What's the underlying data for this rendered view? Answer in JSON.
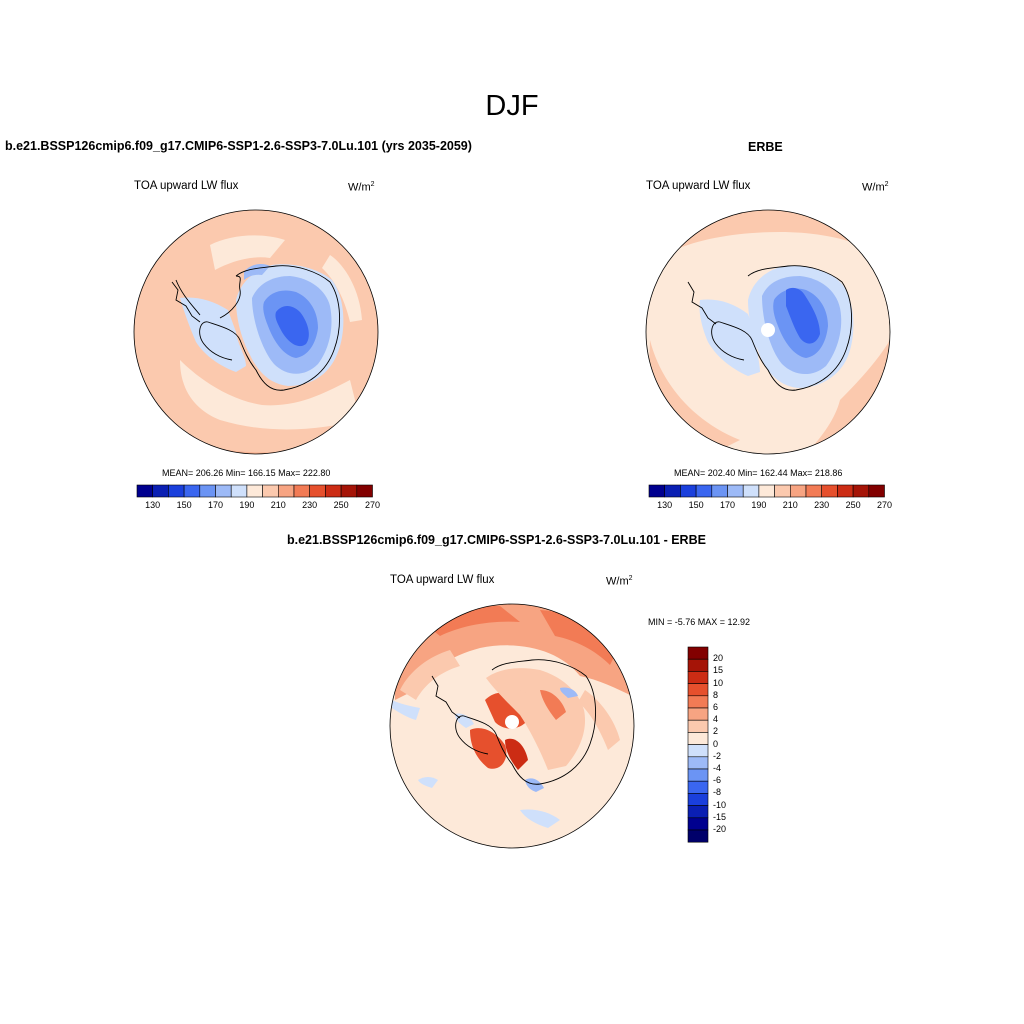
{
  "page": {
    "title": "DJF"
  },
  "panels": {
    "model": {
      "case_title": "b.e21.BSSP126cmip6.f09_g17.CMIP6-SSP1-2.6-SSP3-7.0Lu.101 (yrs 2035-2059)",
      "variable": "TOA upward LW flux",
      "units_base": "W/m",
      "units_exp": "2",
      "stats": "MEAN= 206.26  Min= 166.15  Max= 222.80"
    },
    "obs": {
      "case_title": "ERBE",
      "variable": "TOA upward LW flux",
      "units_base": "W/m",
      "units_exp": "2",
      "stats": "MEAN= 202.40  Min= 162.44  Max= 218.86"
    },
    "diff": {
      "case_title": "b.e21.BSSP126cmip6.f09_g17.CMIP6-SSP1-2.6-SSP3-7.0Lu.101 - ERBE",
      "variable": "TOA upward LW flux",
      "units_base": "W/m",
      "units_exp": "2",
      "minmax": "MIN =  -5.76 MAX =  12.92"
    }
  },
  "colorbar_main": {
    "colors": [
      "#00008f",
      "#0a1fb3",
      "#1a3fdc",
      "#3a66f0",
      "#6b94f4",
      "#9dbaf7",
      "#cfe0fb",
      "#fde9d9",
      "#fbc9ae",
      "#f7a482",
      "#f27b55",
      "#e6502d",
      "#cc2c14",
      "#a51407",
      "#820000"
    ],
    "tick_labels": [
      "130",
      "150",
      "170",
      "190",
      "210",
      "230",
      "250",
      "270"
    ]
  },
  "colorbar_diff": {
    "colors": [
      "#820000",
      "#a51407",
      "#cc2c14",
      "#e6502d",
      "#f27b55",
      "#f7a482",
      "#fbc9ae",
      "#fde9d9",
      "#cfe0fb",
      "#9dbaf7",
      "#6b94f4",
      "#3a66f0",
      "#1a3fdc",
      "#0a1fb3",
      "#00008f",
      "#00006a"
    ],
    "tick_labels": [
      "20",
      "15",
      "10",
      "8",
      "6",
      "4",
      "2",
      "0",
      "-2",
      "-4",
      "-6",
      "-8",
      "-10",
      "-15",
      "-20"
    ]
  }
}
